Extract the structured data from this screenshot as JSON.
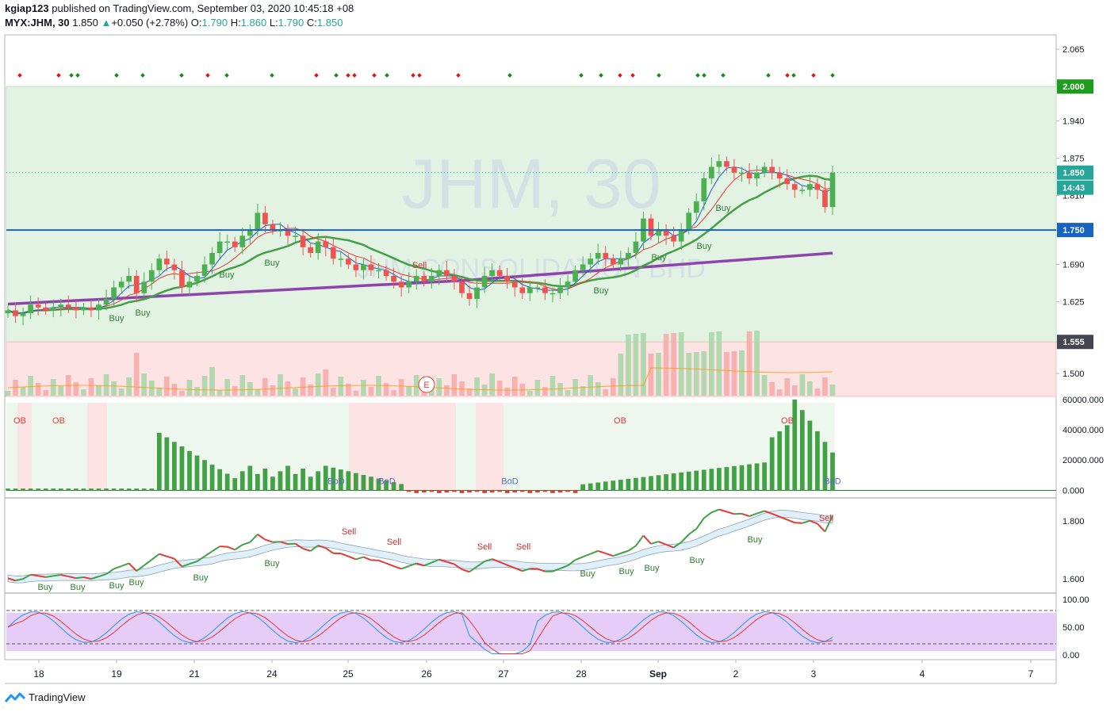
{
  "header": {
    "author": "kgiap123",
    "published_text": "published on TradingView.com, September 03, 2020 10:45:18 +08",
    "symbol": "MYX:JHM, 30",
    "last": "1.850",
    "change": "+0.050 (+2.78%)",
    "o_label": "O:",
    "o_value": "1.790",
    "h_label": "H:",
    "h_value": "1.860",
    "l_label": "L:",
    "l_value": "1.790",
    "c_label": "C:",
    "c_value": "1.850"
  },
  "watermark": {
    "line1": "JHM, 30",
    "line2": "JHM CONSOLIDATION BHD"
  },
  "footer": {
    "brand": "TradingView"
  },
  "colors": {
    "up": "#4caf50",
    "down": "#ef5350",
    "ma_purple": "#8e44ad",
    "ma_green": "#43a047",
    "hline": "#1565c0",
    "green_zone": "#e3f3e3",
    "red_zone": "#fde3e3",
    "stoch_zone": "#e5cdf7"
  },
  "chart_data": [
    {
      "type": "candlestick",
      "title": "MYX:JHM, 30",
      "x_ticks": [
        "18",
        "19",
        "21",
        "24",
        "25",
        "26",
        "27",
        "28",
        "Sep",
        "2",
        "3",
        "4",
        "7"
      ],
      "y_ticks": [
        "2.065",
        "1.940",
        "1.875",
        "1.810",
        "1.750",
        "1.690",
        "1.625",
        "1.555",
        "1.500"
      ],
      "y_range": [
        1.46,
        2.09
      ],
      "price_labels": [
        {
          "value": 2.0,
          "text": "2.000",
          "color": "#1e9c1e"
        },
        {
          "value": 1.85,
          "text": "1.850",
          "color": "#26a69a"
        },
        {
          "value": 1.75,
          "text": "1.750",
          "color": "#1565c0"
        },
        {
          "value": 1.555,
          "text": "1.555",
          "color": "#434651"
        }
      ],
      "countdown": "14:43",
      "horizontal_line": 1.75,
      "zones": [
        {
          "from": 1.555,
          "to": 2.0,
          "color": "green"
        },
        {
          "from": 1.46,
          "to": 1.555,
          "color": "red"
        }
      ],
      "close": [
        1.61,
        1.6,
        1.605,
        1.62,
        1.615,
        1.61,
        1.615,
        1.62,
        1.615,
        1.61,
        1.615,
        1.61,
        1.62,
        1.63,
        1.65,
        1.66,
        1.67,
        1.64,
        1.66,
        1.68,
        1.7,
        1.69,
        1.68,
        1.65,
        1.66,
        1.67,
        1.69,
        1.71,
        1.73,
        1.73,
        1.72,
        1.74,
        1.75,
        1.78,
        1.76,
        1.75,
        1.75,
        1.74,
        1.74,
        1.72,
        1.71,
        1.73,
        1.72,
        1.7,
        1.7,
        1.69,
        1.68,
        1.69,
        1.68,
        1.68,
        1.67,
        1.66,
        1.65,
        1.66,
        1.67,
        1.66,
        1.67,
        1.68,
        1.67,
        1.66,
        1.64,
        1.63,
        1.65,
        1.67,
        1.68,
        1.67,
        1.66,
        1.65,
        1.64,
        1.65,
        1.65,
        1.64,
        1.64,
        1.65,
        1.66,
        1.68,
        1.69,
        1.7,
        1.71,
        1.7,
        1.69,
        1.7,
        1.71,
        1.73,
        1.77,
        1.74,
        1.75,
        1.74,
        1.73,
        1.75,
        1.78,
        1.8,
        1.84,
        1.86,
        1.87,
        1.86,
        1.85,
        1.85,
        1.84,
        1.85,
        1.86,
        1.85,
        1.84,
        1.83,
        1.82,
        1.82,
        1.83,
        1.82,
        1.79,
        1.85
      ],
      "indicators": {
        "ma_long": "purple smooth line",
        "ma_mid": "green smooth line",
        "signals": [
          "Buy",
          "Sell"
        ]
      }
    },
    {
      "type": "bar",
      "title": "volume",
      "note": "green/red volume bars with orange moving average",
      "marker": "E"
    },
    {
      "type": "bar",
      "title": "oscillator",
      "y_ticks": [
        "60000.000",
        "40000.000",
        "20000.000",
        "0.000"
      ],
      "y_range": [
        -5000,
        62000
      ],
      "labels": [
        "OB",
        "OB",
        "OB",
        "OB",
        "BoD",
        "BoD",
        "BoD",
        "BoD"
      ]
    },
    {
      "type": "line",
      "title": "price line with band",
      "y_ticks": [
        "1.800",
        "1.600"
      ],
      "y_range": [
        1.55,
        1.88
      ],
      "signals": [
        {
          "text": "Buy"
        },
        {
          "text": "Buy"
        },
        {
          "text": "Buy"
        },
        {
          "text": "Buy"
        },
        {
          "text": "Buy"
        },
        {
          "text": "Buy"
        },
        {
          "text": "Buy"
        },
        {
          "text": "Buy"
        },
        {
          "text": "Buy"
        },
        {
          "text": "Buy"
        },
        {
          "text": "Buy"
        },
        {
          "text": "Sell"
        },
        {
          "text": "Sell"
        },
        {
          "text": "Sell"
        },
        {
          "text": "Sell"
        },
        {
          "text": "Sell"
        }
      ]
    },
    {
      "type": "line",
      "title": "stochastic",
      "y_ticks": [
        "100.00",
        "50.00",
        "0.00"
      ],
      "y_range": [
        0,
        100
      ],
      "band": [
        20,
        80
      ]
    }
  ]
}
